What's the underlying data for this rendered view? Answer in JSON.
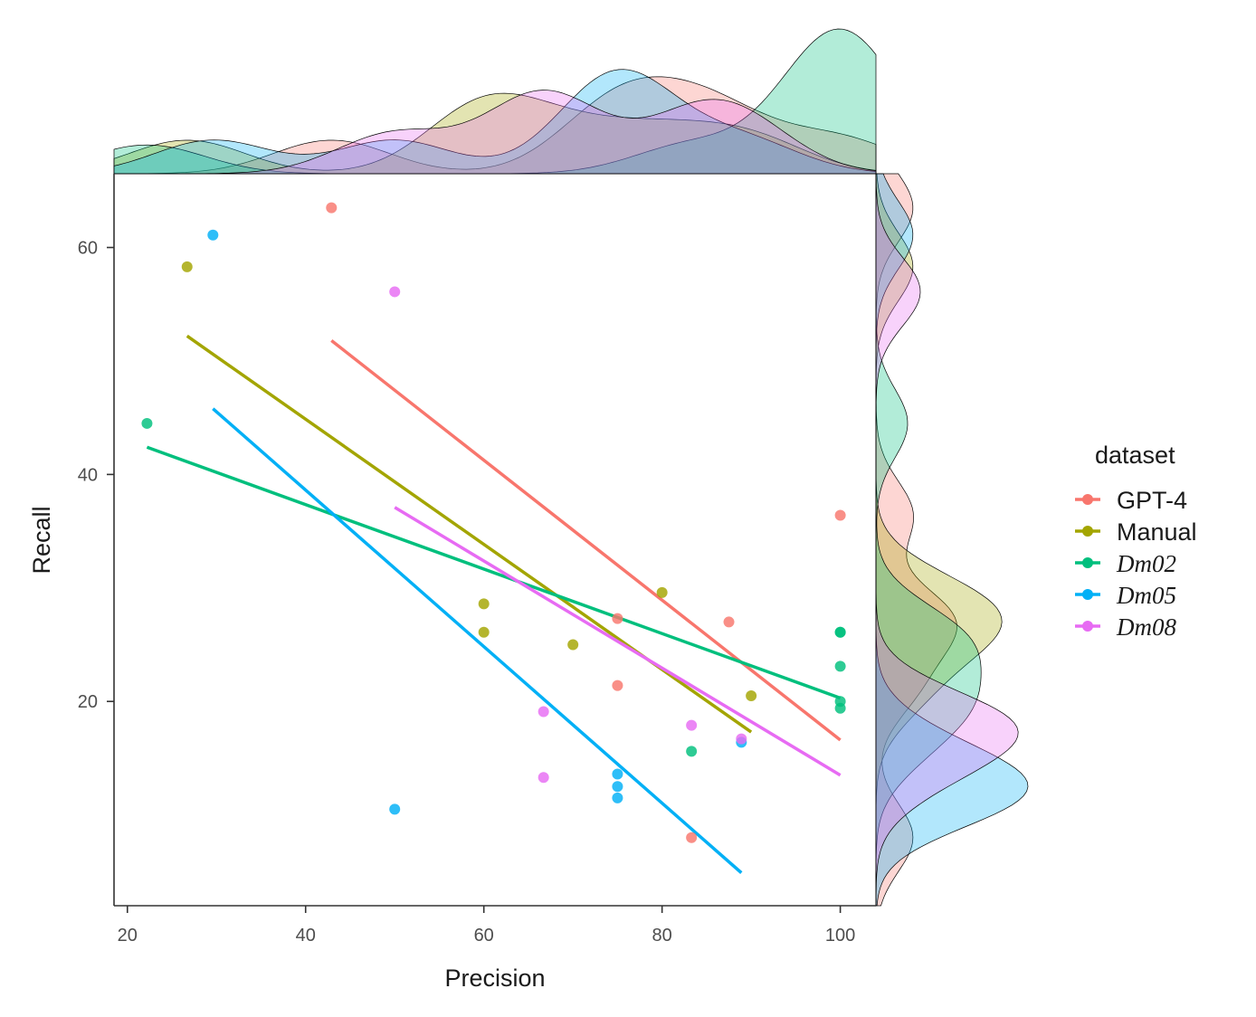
{
  "chart_data": {
    "type": "scatter",
    "title": "",
    "xlabel": "Precision",
    "ylabel": "Recall",
    "xlim": [
      18.5,
      104
    ],
    "ylim": [
      2,
      66.5
    ],
    "x_ticks": [
      20,
      40,
      60,
      80,
      100
    ],
    "y_ticks": [
      20,
      40,
      60
    ],
    "x_tick_labels": [
      "20",
      "40",
      "60",
      "80",
      "100"
    ],
    "y_tick_labels": [
      "20",
      "40",
      "60"
    ],
    "grid": false,
    "marginal_density": true,
    "regression_lines": true,
    "legend": {
      "title": "dataset",
      "placement": "right",
      "entries": [
        "GPT-4",
        "Manual",
        "Dm02",
        "Dm05",
        "Dm08"
      ]
    },
    "series": [
      {
        "name": "GPT-4",
        "color": "#F8766D",
        "x": [
          42.9,
          75,
          75,
          83.3,
          87.5,
          100
        ],
        "y": [
          63.5,
          27.3,
          21.4,
          8.0,
          27.0,
          36.4
        ],
        "fit": {
          "x": [
            42.9,
            100
          ],
          "y": [
            51.8,
            16.6
          ]
        }
      },
      {
        "name": "Manual",
        "color": "#A3A500",
        "x": [
          26.7,
          60,
          60,
          70,
          80,
          90
        ],
        "y": [
          58.3,
          28.6,
          26.1,
          25.0,
          29.6,
          20.5
        ],
        "fit": {
          "x": [
            26.7,
            90
          ],
          "y": [
            52.2,
            17.3
          ]
        }
      },
      {
        "name": "Dm02",
        "color": "#00BF7D",
        "x": [
          22.2,
          83.3,
          100,
          100,
          100,
          100,
          100
        ],
        "y": [
          44.5,
          15.6,
          26.1,
          26.1,
          23.1,
          20.0,
          19.4
        ],
        "fit": {
          "x": [
            22.2,
            100
          ],
          "y": [
            42.4,
            20.3
          ]
        }
      },
      {
        "name": "Dm05",
        "color": "#00B0F6",
        "x": [
          29.6,
          50,
          75,
          75,
          75,
          88.9
        ],
        "y": [
          61.1,
          10.5,
          13.6,
          12.5,
          11.5,
          16.4
        ],
        "fit": {
          "x": [
            29.6,
            88.9
          ],
          "y": [
            45.8,
            4.9
          ]
        }
      },
      {
        "name": "Dm08",
        "color": "#E76BF3",
        "x": [
          50,
          66.7,
          66.7,
          83.3,
          88.9
        ],
        "y": [
          56.1,
          19.1,
          13.3,
          17.9,
          16.7
        ],
        "fit": {
          "x": [
            50,
            100
          ],
          "y": [
            37.1,
            13.5
          ]
        }
      }
    ]
  }
}
